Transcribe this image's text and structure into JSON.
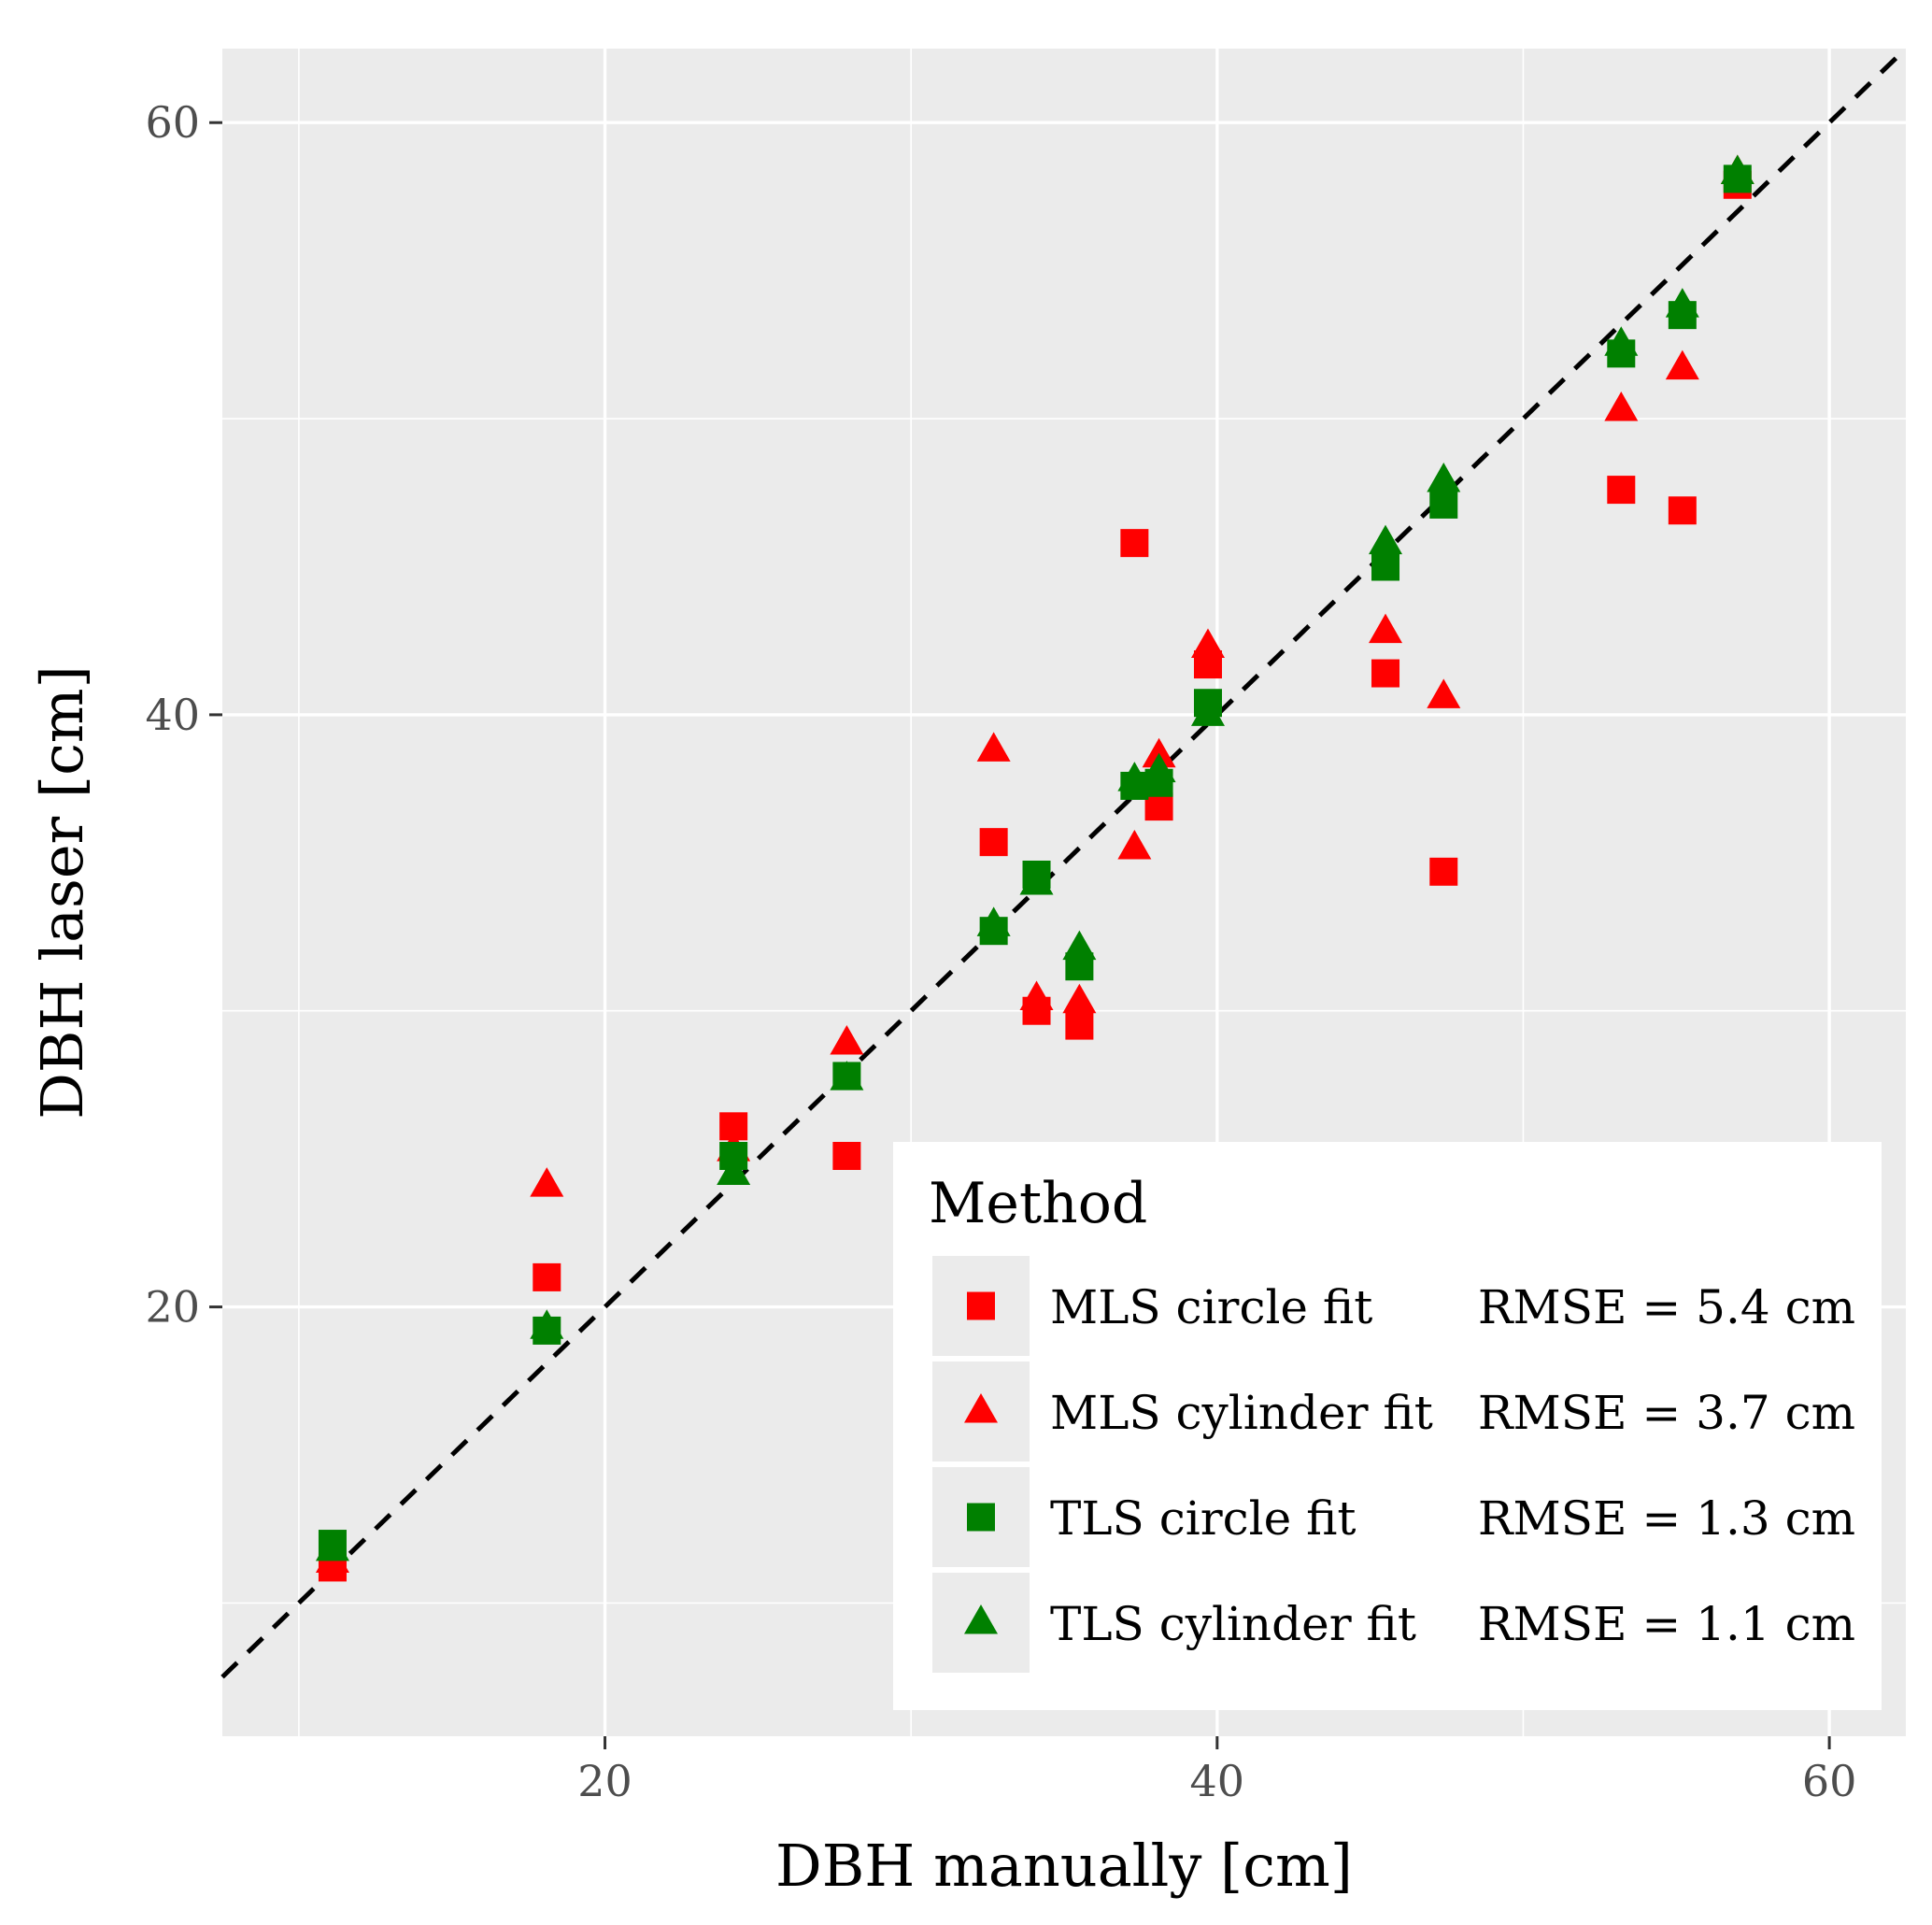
{
  "chart_data": {
    "type": "scatter",
    "title": "",
    "xlabel": "DBH manually [cm]",
    "ylabel": "DBH laser [cm]",
    "xlim": [
      7.5,
      62.5
    ],
    "ylim": [
      5.5,
      62.5
    ],
    "xticks": [
      20,
      40,
      60
    ],
    "yticks": [
      20,
      40,
      60
    ],
    "grid": true,
    "reference_line": {
      "type": "identity",
      "style": "dashed",
      "color": "#000000"
    },
    "legend": {
      "title": "Method",
      "position": "bottom-right",
      "entries": [
        {
          "label": "MLS circle fit",
          "rmse": "RMSE = 5.4 cm"
        },
        {
          "label": "MLS cylinder fit",
          "rmse": "RMSE = 3.7 cm"
        },
        {
          "label": "TLS circle fit",
          "rmse": "RMSE = 1.3 cm"
        },
        {
          "label": "TLS cylinder fit",
          "rmse": "RMSE = 1.1 cm"
        }
      ]
    },
    "series": [
      {
        "name": "MLS circle fit",
        "marker": "square",
        "color": "#ff0000",
        "points": [
          [
            11.1,
            11.2
          ],
          [
            18.1,
            21.0
          ],
          [
            24.2,
            26.1
          ],
          [
            27.9,
            25.1
          ],
          [
            32.7,
            35.7
          ],
          [
            34.1,
            30.0
          ],
          [
            35.5,
            29.5
          ],
          [
            37.3,
            45.8
          ],
          [
            38.1,
            36.9
          ],
          [
            39.7,
            41.7
          ],
          [
            45.5,
            41.4
          ],
          [
            47.4,
            34.7
          ],
          [
            53.2,
            47.6
          ],
          [
            55.2,
            46.9
          ],
          [
            57.0,
            57.9
          ]
        ]
      },
      {
        "name": "MLS cylinder fit",
        "marker": "triangle",
        "color": "#ff0000",
        "points": [
          [
            11.1,
            11.4
          ],
          [
            18.1,
            24.1
          ],
          [
            24.2,
            25.3
          ],
          [
            27.9,
            28.9
          ],
          [
            32.7,
            38.8
          ],
          [
            34.1,
            30.4
          ],
          [
            35.5,
            30.3
          ],
          [
            37.3,
            35.5
          ],
          [
            38.1,
            38.6
          ],
          [
            39.7,
            42.3
          ],
          [
            45.5,
            42.8
          ],
          [
            47.4,
            40.6
          ],
          [
            53.2,
            50.3
          ],
          [
            55.2,
            51.7
          ],
          [
            57.0,
            58.3
          ]
        ]
      },
      {
        "name": "TLS circle fit",
        "marker": "square",
        "color": "#008000",
        "points": [
          [
            11.1,
            12.0
          ],
          [
            18.1,
            19.2
          ],
          [
            24.2,
            25.1
          ],
          [
            27.9,
            27.8
          ],
          [
            32.7,
            32.7
          ],
          [
            34.1,
            34.6
          ],
          [
            35.5,
            31.5
          ],
          [
            37.3,
            37.6
          ],
          [
            38.1,
            37.7
          ],
          [
            39.7,
            40.4
          ],
          [
            45.5,
            45.0
          ],
          [
            47.4,
            47.1
          ],
          [
            53.2,
            52.2
          ],
          [
            55.2,
            53.5
          ],
          [
            57.0,
            58.1
          ]
        ]
      },
      {
        "name": "TLS cylinder fit",
        "marker": "triangle",
        "color": "#008000",
        "points": [
          [
            11.1,
            11.8
          ],
          [
            18.1,
            19.3
          ],
          [
            24.2,
            24.5
          ],
          [
            27.9,
            27.7
          ],
          [
            32.7,
            32.9
          ],
          [
            34.1,
            34.3
          ],
          [
            35.5,
            32.1
          ],
          [
            37.3,
            37.8
          ],
          [
            38.1,
            38.1
          ],
          [
            39.7,
            40.0
          ],
          [
            45.5,
            45.8
          ],
          [
            47.4,
            47.9
          ],
          [
            53.2,
            52.5
          ],
          [
            55.2,
            53.8
          ],
          [
            57.0,
            58.3
          ]
        ]
      }
    ]
  }
}
